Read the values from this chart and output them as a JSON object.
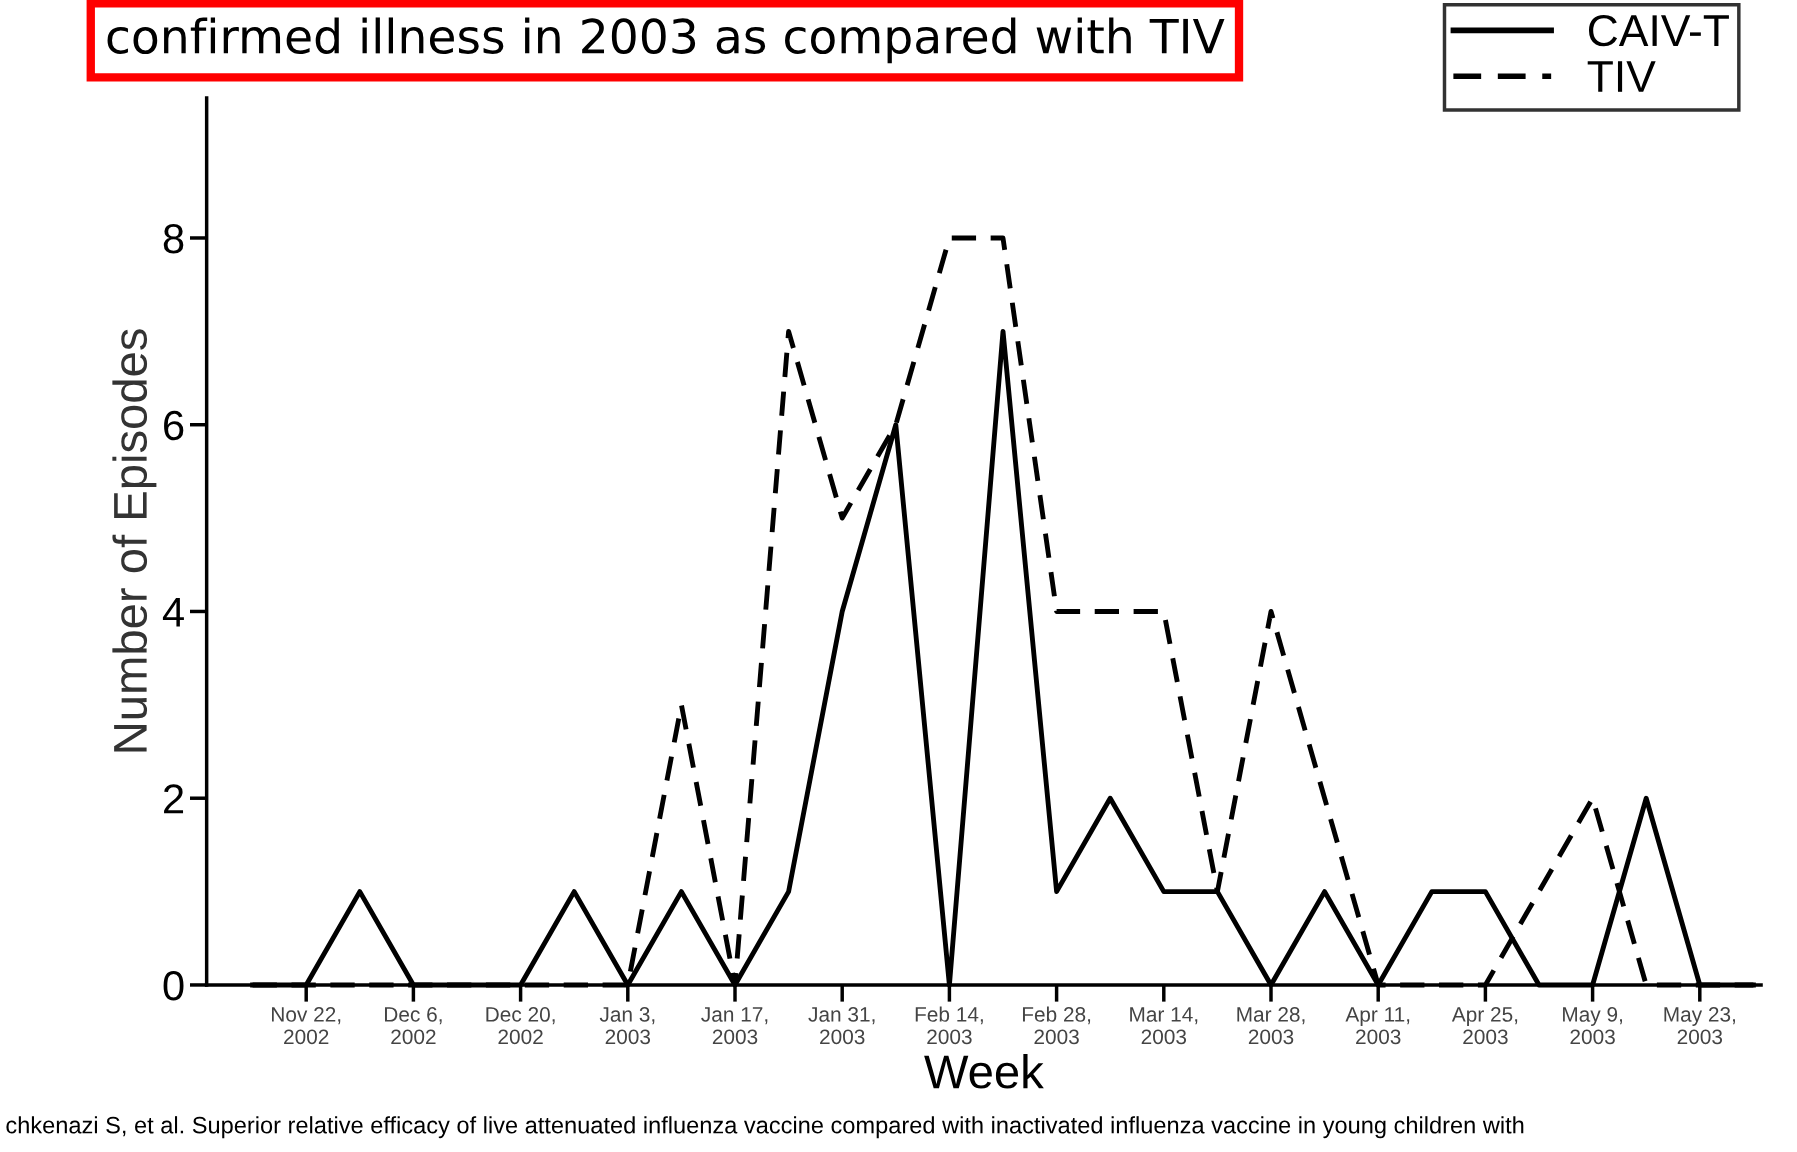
{
  "chart_data": {
    "type": "line",
    "title": "confirmed illness in 2003 as compared with TIV",
    "xlabel": "Week",
    "ylabel": "Number of Episodes",
    "x": [
      "2002-11-15",
      "2002-11-22",
      "2002-11-29",
      "2002-12-06",
      "2002-12-13",
      "2002-12-20",
      "2002-12-27",
      "2003-01-03",
      "2003-01-10",
      "2003-01-17",
      "2003-01-24",
      "2003-01-31",
      "2003-02-07",
      "2003-02-14",
      "2003-02-21",
      "2003-02-28",
      "2003-03-07",
      "2003-03-14",
      "2003-03-21",
      "2003-03-28",
      "2003-04-04",
      "2003-04-11",
      "2003-04-18",
      "2003-04-25",
      "2003-05-02",
      "2003-05-09",
      "2003-05-16",
      "2003-05-23",
      "2003-05-30"
    ],
    "series": [
      {
        "name": "CAIV-T",
        "color": "#000000",
        "line_style": "solid",
        "values": [
          0,
          0,
          1,
          0,
          0,
          0,
          1,
          0,
          1,
          0,
          1,
          4,
          6,
          0,
          7,
          1,
          2,
          1,
          1,
          0,
          1,
          0,
          1,
          1,
          0,
          0,
          2,
          0,
          0
        ]
      },
      {
        "name": "TIV",
        "color": "#000000",
        "line_style": "dashed",
        "values": [
          0,
          0,
          0,
          0,
          0,
          0,
          0,
          0,
          3,
          0,
          7,
          5,
          6,
          8,
          8,
          4,
          4,
          4,
          1,
          4,
          2,
          0,
          0,
          0,
          1,
          2,
          0,
          0,
          0
        ]
      }
    ],
    "xlim": [
      "2002-11-09",
      "2003-05-31"
    ],
    "xticks": [
      {
        "value": "2002-11-22",
        "label": "Nov 22,\n2002"
      },
      {
        "value": "2002-12-06",
        "label": "Dec 6,\n2002"
      },
      {
        "value": "2002-12-20",
        "label": "Dec 20,\n2002"
      },
      {
        "value": "2003-01-03",
        "label": "Jan 3,\n2003"
      },
      {
        "value": "2003-01-17",
        "label": "Jan 17,\n2003"
      },
      {
        "value": "2003-01-31",
        "label": "Jan 31,\n2003"
      },
      {
        "value": "2003-02-14",
        "label": "Feb 14,\n2003"
      },
      {
        "value": "2003-02-28",
        "label": "Feb 28,\n2003"
      },
      {
        "value": "2003-03-14",
        "label": "Mar 14,\n2003"
      },
      {
        "value": "2003-03-28",
        "label": "Mar 28,\n2003"
      },
      {
        "value": "2003-04-11",
        "label": "Apr 11,\n2003"
      },
      {
        "value": "2003-04-25",
        "label": "Apr 25,\n2003"
      },
      {
        "value": "2003-05-09",
        "label": "May 9,\n2003"
      },
      {
        "value": "2003-05-23",
        "label": "May 23,\n2003"
      }
    ],
    "ylim": [
      0,
      9.5
    ],
    "yticks": [
      0,
      2,
      4,
      6,
      8
    ],
    "grid": false,
    "legend": "top right",
    "marker": "none",
    "annotations": [
      "chkenazi S, et al. Superior relative efficacy of live attenuated influenza vaccine compared with inactivated influenza vaccine in young children with"
    ]
  }
}
